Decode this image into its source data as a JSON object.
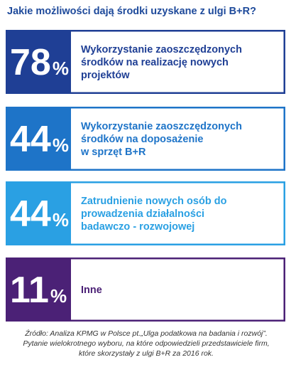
{
  "chart_data": {
    "type": "bar",
    "title": "Jakie możliwości dają środki uzyskane z ulgi B+R?",
    "unit": "%",
    "categories": [
      [
        "Wykorzystanie zaoszczędzonych",
        "środków na realizację nowych",
        "projektów"
      ],
      [
        "Wykorzystanie zaoszczędzonych",
        "środków na doposażenie",
        "w sprzęt B+R"
      ],
      [
        "Zatrudnienie nowych osób do",
        "prowadzenia działalności",
        "badawczo - rozwojowej"
      ],
      [
        "Inne"
      ]
    ],
    "values": [
      78,
      44,
      44,
      11
    ],
    "colors": [
      "#1f3f95",
      "#1e74c8",
      "#2aa0e3",
      "#4b2176"
    ]
  },
  "source_note": [
    "Źródło: Analiza KPMG w Polsce pt.„Ulga podatkowa na badania i rozwój”.",
    "Pytanie wielokrotnego wyboru, na które odpowiedzieli przedstawiciele firm,",
    "które skorzystały z ulgi B+R za 2016 rok."
  ]
}
